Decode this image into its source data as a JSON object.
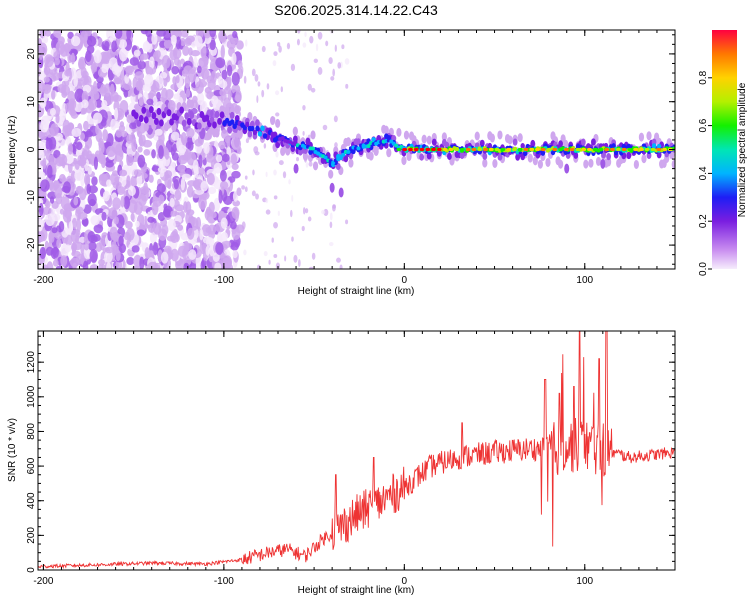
{
  "title": "S206.2025.314.14.22.C43",
  "colors": {
    "snr_line": "#ee3333",
    "frame": "#000000",
    "background": "#ffffff",
    "colormap": [
      "#f4e8fb",
      "#cfa7ee",
      "#a05ae6",
      "#7a1ee0",
      "#1e1ef5",
      "#00b4ff",
      "#00e6b4",
      "#14f000",
      "#b4f000",
      "#ffd200",
      "#ff7800",
      "#ff0000"
    ]
  },
  "chart_data": [
    {
      "type": "heatmap",
      "name": "spectrogram",
      "xlabel": "Height of straight line (km)",
      "ylabel": "Frequency (Hz)",
      "xlim": [
        -203,
        150
      ],
      "ylim": [
        -25,
        25
      ],
      "xticks": [
        -200,
        -100,
        0,
        100
      ],
      "yticks": [
        -20,
        -10,
        0,
        10,
        20
      ],
      "colorbar": {
        "label": "Normalized spectral amplitude",
        "range": [
          0,
          1
        ],
        "ticks": [
          "0.0",
          "0.2",
          "0.4",
          "0.6",
          "0.8"
        ]
      },
      "ridge": {
        "description_points_x": [
          -203,
          -150,
          -130,
          -100,
          -80,
          -60,
          -50,
          -40,
          -30,
          -20,
          -10,
          0,
          50,
          100,
          150
        ],
        "frequency_y": [
          5,
          7,
          7,
          6,
          4,
          1,
          0,
          -3,
          0,
          1,
          2,
          0,
          0,
          0,
          0
        ]
      }
    },
    {
      "type": "line",
      "name": "snr",
      "xlabel": "Height of straight line (km)",
      "ylabel": "SNR (10 * v/v)",
      "xlim": [
        -203,
        150
      ],
      "ylim": [
        0,
        1380
      ],
      "xticks": [
        -200,
        -100,
        0,
        100
      ],
      "yticks": [
        0,
        200,
        400,
        600,
        800,
        1000,
        1200
      ],
      "series": [
        {
          "name": "SNR",
          "x": [
            -203,
            -170,
            -140,
            -110,
            -90,
            -75,
            -65,
            -55,
            -45,
            -35,
            -25,
            -15,
            0,
            15,
            30,
            50,
            70,
            85,
            95,
            105,
            112,
            125,
            150
          ],
          "y": [
            20,
            30,
            40,
            35,
            60,
            100,
            120,
            80,
            180,
            250,
            330,
            380,
            480,
            600,
            650,
            680,
            700,
            700,
            720,
            710,
            690,
            650,
            680
          ]
        }
      ],
      "spikes": [
        {
          "x": -38,
          "y": 550
        },
        {
          "x": -17,
          "y": 650
        },
        {
          "x": 32,
          "y": 850
        },
        {
          "x": 78,
          "y": 1100
        },
        {
          "x": 86,
          "y": 1020
        },
        {
          "x": 94,
          "y": 1060
        },
        {
          "x": 97,
          "y": 1380
        },
        {
          "x": 108,
          "y": 1220
        },
        {
          "x": 112,
          "y": 1380
        }
      ]
    }
  ]
}
